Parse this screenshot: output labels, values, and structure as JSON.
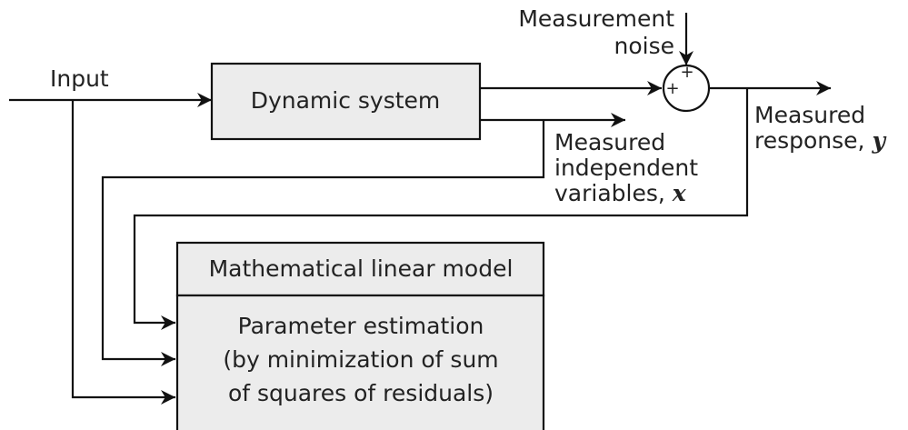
{
  "input": "Input",
  "dynamic_system": "Dynamic system",
  "noise": {
    "lines": [
      "Measurement",
      "noise"
    ]
  },
  "sum": {
    "signs": [
      "+",
      "+"
    ]
  },
  "response": {
    "lines": [
      "Measured",
      "response,"
    ],
    "variable": "y"
  },
  "independent": {
    "lines": [
      "Measured",
      "independent",
      "variables,"
    ],
    "variable": "x"
  },
  "model": {
    "title": "Mathematical linear model",
    "body": [
      "Parameter estimation",
      "(by minimization of sum",
      "of squares of residuals)"
    ]
  }
}
